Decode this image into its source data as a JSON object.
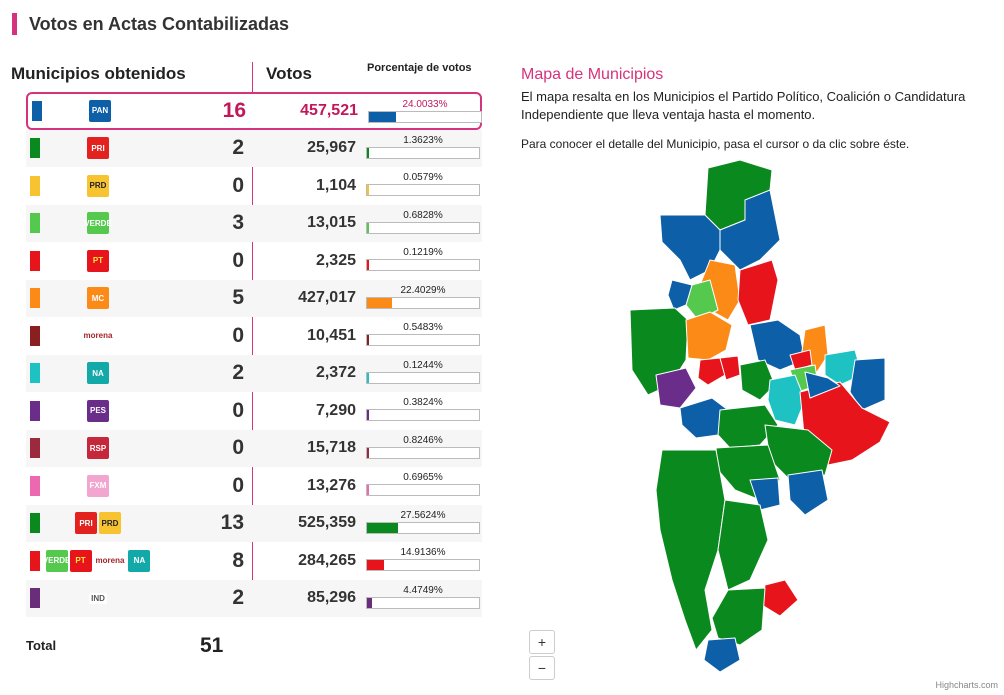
{
  "header": {
    "title": "Votos en Actas Contabilizadas",
    "accent": "#d5337d"
  },
  "columns": {
    "municipios": "Municipios obtenidos",
    "votos": "Votos",
    "porcentaje": "Porcentaje de votos"
  },
  "rows": [
    {
      "party": "PAN",
      "color": "#0d5fa8",
      "municipios": "16",
      "votos": "457,521",
      "pct_label": "24.0033%",
      "pct": 24.0033,
      "logos": [
        {
          "text": "PAN",
          "bg": "#0d5fa8",
          "fg": "#ffffff"
        }
      ]
    },
    {
      "party": "PRI",
      "color": "#0a8a1e",
      "municipios": "2",
      "votos": "25,967",
      "pct_label": "1.3623%",
      "pct": 1.3623,
      "logos": [
        {
          "text": "PRI",
          "bg": "#e3221f",
          "fg": "#ffffff"
        }
      ]
    },
    {
      "party": "PRD",
      "color": "#f8c331",
      "municipios": "0",
      "votos": "1,104",
      "pct_label": "0.0579%",
      "pct": 0.0579,
      "logos": [
        {
          "text": "PRD",
          "bg": "#f8c331",
          "fg": "#222222"
        }
      ]
    },
    {
      "party": "VERDE",
      "color": "#55c94e",
      "municipios": "3",
      "votos": "13,015",
      "pct_label": "0.6828%",
      "pct": 0.6828,
      "logos": [
        {
          "text": "VERDE",
          "bg": "#55c94e",
          "fg": "#ffffff"
        }
      ]
    },
    {
      "party": "PT",
      "color": "#e8141c",
      "municipios": "0",
      "votos": "2,325",
      "pct_label": "0.1219%",
      "pct": 0.1219,
      "logos": [
        {
          "text": "PT",
          "bg": "#e8141c",
          "fg": "#ffeb3b"
        }
      ]
    },
    {
      "party": "MC",
      "color": "#fb8a16",
      "municipios": "5",
      "votos": "427,017",
      "pct_label": "22.4029%",
      "pct": 22.4029,
      "logos": [
        {
          "text": "MC",
          "bg": "#fb8a16",
          "fg": "#ffffff"
        }
      ]
    },
    {
      "party": "morena",
      "color": "#8a1f1f",
      "municipios": "0",
      "votos": "10,451",
      "pct_label": "0.5483%",
      "pct": 0.5483,
      "logos": [
        {
          "text": "morena",
          "bg": "#ffffff",
          "fg": "#a3252b",
          "type": "txt"
        }
      ]
    },
    {
      "party": "NA",
      "color": "#1ec2c2",
      "municipios": "2",
      "votos": "2,372",
      "pct_label": "0.1244%",
      "pct": 0.1244,
      "logos": [
        {
          "text": "NA",
          "bg": "#14a9a9",
          "fg": "#ffffff"
        }
      ]
    },
    {
      "party": "PES",
      "color": "#6a2d8a",
      "municipios": "0",
      "votos": "7,290",
      "pct_label": "0.3824%",
      "pct": 0.3824,
      "logos": [
        {
          "text": "PES",
          "bg": "#6a2d8a",
          "fg": "#ffffff"
        }
      ]
    },
    {
      "party": "RSP",
      "color": "#9c2a3e",
      "municipios": "0",
      "votos": "15,718",
      "pct_label": "0.8246%",
      "pct": 0.8246,
      "logos": [
        {
          "text": "RSP",
          "bg": "#c5283a",
          "fg": "#ffffff"
        }
      ]
    },
    {
      "party": "FXM",
      "color": "#ec68b0",
      "municipios": "0",
      "votos": "13,276",
      "pct_label": "0.6965%",
      "pct": 0.6965,
      "logos": [
        {
          "text": "FXM",
          "bg": "#f2a6cf",
          "fg": "#ffffff"
        }
      ]
    },
    {
      "party": "PRI-PRD",
      "color": "#0a8a1e",
      "municipios": "13",
      "votos": "525,359",
      "pct_label": "27.5624%",
      "pct": 27.5624,
      "logos": [
        {
          "text": "PRI",
          "bg": "#e3221f",
          "fg": "#ffffff"
        },
        {
          "text": "PRD",
          "bg": "#f8c331",
          "fg": "#222222"
        }
      ]
    },
    {
      "party": "VERDE-PT-MORENA-NA",
      "color": "#e8141c",
      "municipios": "8",
      "votos": "284,265",
      "pct_label": "14.9136%",
      "pct": 14.9136,
      "logos": [
        {
          "text": "VERDE",
          "bg": "#55c94e",
          "fg": "#ffffff"
        },
        {
          "text": "PT",
          "bg": "#e8141c",
          "fg": "#ffeb3b"
        },
        {
          "text": "morena",
          "bg": "#ffffff",
          "fg": "#a3252b",
          "type": "txt"
        },
        {
          "text": "NA",
          "bg": "#14a9a9",
          "fg": "#ffffff"
        }
      ]
    },
    {
      "party": "IND",
      "color": "#6a2d7a",
      "municipios": "2",
      "votos": "85,296",
      "pct_label": "4.4749%",
      "pct": 4.4749,
      "logos": [
        {
          "text": "IND",
          "bg": "#ffffff",
          "fg": "#555555",
          "type": "txt"
        }
      ]
    }
  ],
  "total": {
    "label": "Total",
    "value": "51"
  },
  "map": {
    "title": "Mapa de Municipios",
    "description": "El mapa resalta en los Municipios el Partido Político, Coalición o Candidatura Independiente que lleva ventaja hasta el momento.",
    "hint": "Para conocer el detalle del Municipio, pasa el cursor o da clic sobre éste.",
    "zoom_in": "+",
    "zoom_out": "−",
    "credits": "Highcharts.com"
  }
}
